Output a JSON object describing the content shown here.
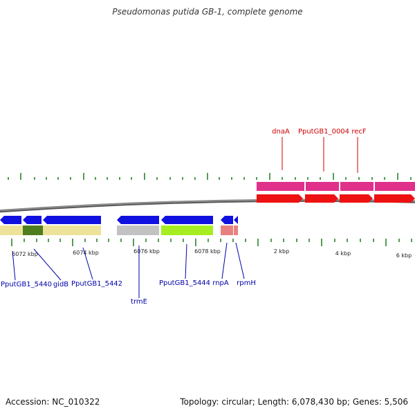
{
  "title": "Pseudomonas putida GB-1, complete genome",
  "footer": {
    "accession": "Accession: NC_010322",
    "summary": "Topology: circular; Length: 6,078,430 bp; Genes: 5,506"
  },
  "colors": {
    "backbone": "#8a8a8a",
    "tick": "#1a7a1a",
    "cds": "#1010e0",
    "cds_top": "#ee1111",
    "gene_top": "#e0308a",
    "gene_bottom_a": "#ede29a",
    "gene_bottom_b": "#4e7e1e",
    "gene_bottom_c": "#c2c2c2",
    "gene_bottom_d": "#a6ee22",
    "gene_bottom_e": "#e88080",
    "label_bottom": "#0000aa",
    "label_top": "#cc0000"
  },
  "scale_labels": [
    "6072 kbp",
    "6074 kbp",
    "6076 kbp",
    "6078 kbp",
    "2 kbp",
    "4 kbp",
    "6 kbp"
  ],
  "labels_top": [
    "dnaA",
    "PputGB1_0004",
    "recF"
  ],
  "labels_bottom": [
    "PputGB1_5440",
    "gidB",
    "PputGB1_5442",
    "trmE",
    "PputGB1_5444",
    "rnpA",
    "rpmH"
  ]
}
